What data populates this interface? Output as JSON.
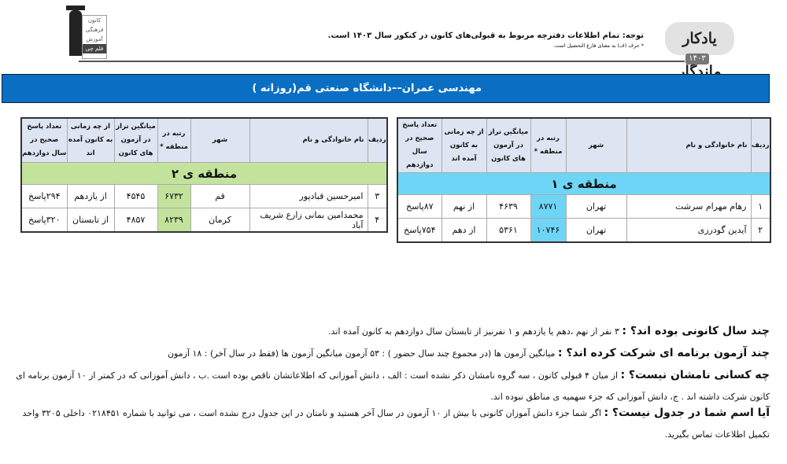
{
  "header": {
    "logo_right": {
      "text": "یادکار ماندگار",
      "year": "۱۴۰۳"
    },
    "notice": "توجه: تمام اطلاعات دفترچه مربوط به قبولی‌های کانون در کنکور سال ۱۴۰۳ است.",
    "notice_sub": "* حرف (ف) به معنای فارغ التحصیل است.",
    "logo_left": [
      "کانون",
      "فرهنگی",
      "آموزش",
      "قلم چی"
    ]
  },
  "banner": {
    "title": "مهندسی عمران––دانشگاه صنعتی قم(روزانه )"
  },
  "columns": [
    "ردیف",
    "نام خانوادگی و نام",
    "شهر",
    "رتبه در منطقه *",
    "میانگین تراز در آزمون های کانون",
    "از چه زمانی به کانون آمده اند",
    "تعداد پاسخ صحیح در سال دوازدهم"
  ],
  "tables": [
    {
      "zone": "منطقه ی ۱",
      "color": "#6fd5f7",
      "rows": [
        {
          "radif": "۱",
          "name": "رهام مهرام سرشت",
          "city": "تهران",
          "rank": "۸۷۷۱",
          "avg": "۴۶۳۹",
          "since": "از نهم",
          "answers": "۸۷پاسخ"
        },
        {
          "radif": "۲",
          "name": "آیدین گودرزی",
          "city": "تهران",
          "rank": "۱۰۷۴۶",
          "avg": "۵۳۶۱",
          "since": "از دهم",
          "answers": "۷۵۴پاسخ"
        }
      ]
    },
    {
      "zone": "منطقه ی ۲",
      "color": "#c3e39c",
      "rows": [
        {
          "radif": "۳",
          "name": "امیرحسین قبادپور",
          "city": "قم",
          "rank": "۶۷۳۲",
          "avg": "۴۵۴۵",
          "since": "از یازدهم",
          "answers": "۲۹۴پاسخ"
        },
        {
          "radif": "۴",
          "name": "محمدامین بمانی زارع شریف آباد",
          "city": "کرمان",
          "rank": "۸۲۳۹",
          "avg": "۴۸۵۷",
          "since": "از تابستان",
          "answers": "۳۲۰پاسخ"
        }
      ]
    }
  ],
  "notes": [
    {
      "q": "چند سال کانونی بوده اند؟ :",
      "a": " ۳ نفر از نهم ،دهم یا یازدهم و ۱ نفرنیز از تابستان سال دوازدهم به کانون آمده اند."
    },
    {
      "q": "چند آزمون برنامه ای شرکت کرده اند؟ :",
      "a": " میانگین آزمون ها (در مجموع چند سال حضور ) : ۵۳ آزمون      میانگین آزمون ها (فقط در سال آخر) : ۱۸ آزمون"
    },
    {
      "q": "چه کسانی نامشان نیست؟ :",
      "a": " از میان ۴ قبولی کانون ، سه گروه نامشان ذکر نشده است : الف ، دانش آموزانی که اطلاعاتشان ناقص بوده است .ب ، دانش آموزانی که در کمتر از ۱۰ آزمون برنامه ای",
      "a2": "کانون شرکت داشته اند . ج، دانش آموزانی که جزء سهمیه ی مناطق نبوده اند."
    },
    {
      "q": "آیا اسم شما در جدول نیست؟ :",
      "a": " اگر شما جزء دانش آموزان کانونی با بیش از ۱۰ آزمون در سال آخر هستید و نامتان در این جدول درج نشده است ، می توانید با شماره ۰۲۱۸۴۵۱ داخلی ۳۲۰۵ واحد",
      "a2": "تکمیل اطلاعات تماس بگیرید."
    }
  ]
}
